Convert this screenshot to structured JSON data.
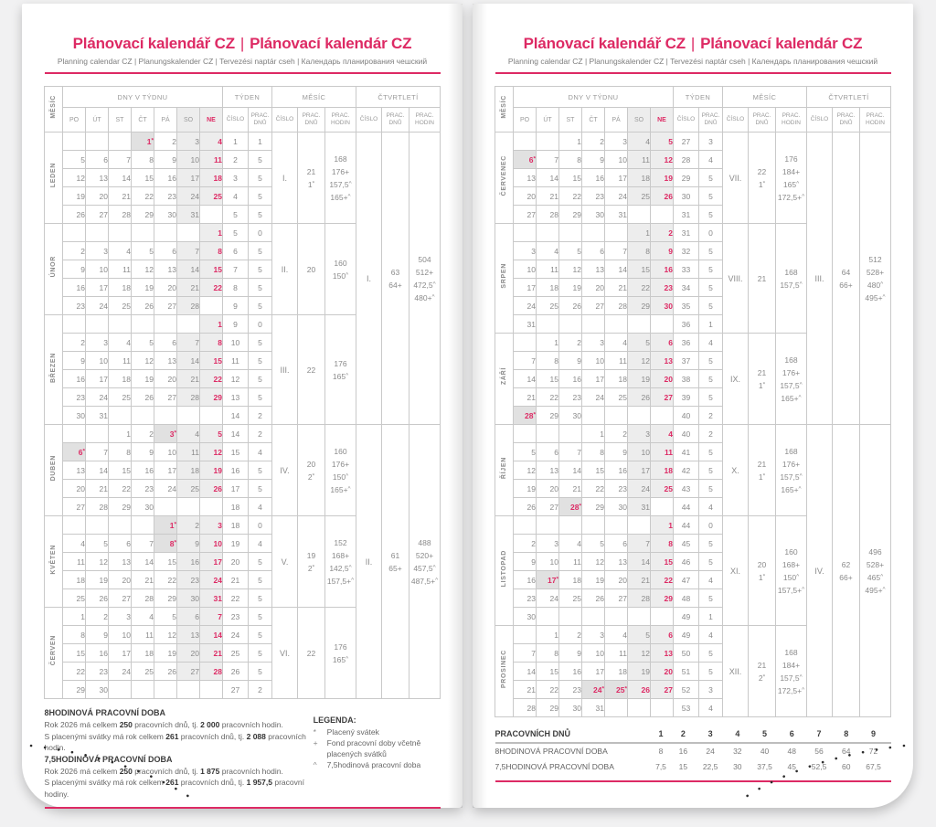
{
  "colors": {
    "accent": "#dd2a64",
    "weekend_bg": "#ededed",
    "holiday_bg": "#e1e1e1"
  },
  "header": {
    "title_cz": "Plánovací kalendář CZ",
    "title_sep": "|",
    "title_sk": "Plánovací kalendár CZ",
    "subtitle": "Planning calendar CZ | Planungskalender CZ | Tervezési naptár cseh | Календарь планирования чешский"
  },
  "table_header": {
    "mesic": "MĚSÍC",
    "dny_v_tydnu": "DNY V TÝDNU",
    "tyden": "TÝDEN",
    "mesic_group": "MĚSÍC",
    "ctvrtleti": "ČTVRTLETÍ",
    "days": [
      "PO",
      "ÚT",
      "ST",
      "ČT",
      "PÁ",
      "SO",
      "NE"
    ],
    "cislo": "ČÍSLO",
    "prac_dnu": [
      "PRAC.",
      "DNŮ"
    ],
    "prac_hodin": [
      "PRAC.",
      "HODIN"
    ]
  },
  "months": [
    {
      "name": "LEDEN",
      "weeks": [
        {
          "days": [
            "",
            "",
            "",
            "1*",
            "2",
            "3",
            "4"
          ],
          "wk": "1",
          "wd": "1"
        },
        {
          "days": [
            "5",
            "6",
            "7",
            "8",
            "9",
            "10",
            "11"
          ],
          "wk": "2",
          "wd": "5"
        },
        {
          "days": [
            "12",
            "13",
            "14",
            "15",
            "16",
            "17",
            "18"
          ],
          "wk": "3",
          "wd": "5"
        },
        {
          "days": [
            "19",
            "20",
            "21",
            "22",
            "23",
            "24",
            "25"
          ],
          "wk": "4",
          "wd": "5"
        },
        {
          "days": [
            "26",
            "27",
            "28",
            "29",
            "30",
            "31",
            ""
          ],
          "wk": "5",
          "wd": "5"
        }
      ],
      "sum": {
        "num": "I.",
        "dnu": [
          "21",
          "1*"
        ],
        "hod": [
          "168",
          "176+",
          "157,5^",
          "165+^"
        ]
      }
    },
    {
      "name": "ÚNOR",
      "weeks": [
        {
          "days": [
            "",
            "",
            "",
            "",
            "",
            "",
            "1"
          ],
          "wk": "5",
          "wd": "0"
        },
        {
          "days": [
            "2",
            "3",
            "4",
            "5",
            "6",
            "7",
            "8"
          ],
          "wk": "6",
          "wd": "5"
        },
        {
          "days": [
            "9",
            "10",
            "11",
            "12",
            "13",
            "14",
            "15"
          ],
          "wk": "7",
          "wd": "5"
        },
        {
          "days": [
            "16",
            "17",
            "18",
            "19",
            "20",
            "21",
            "22"
          ],
          "wk": "8",
          "wd": "5"
        },
        {
          "days": [
            "23",
            "24",
            "25",
            "26",
            "27",
            "28",
            ""
          ],
          "wk": "9",
          "wd": "5"
        }
      ],
      "sum": {
        "num": "II.",
        "dnu": [
          "20"
        ],
        "hod": [
          "160",
          "150^"
        ]
      }
    },
    {
      "name": "BŘEZEN",
      "weeks": [
        {
          "days": [
            "",
            "",
            "",
            "",
            "",
            "",
            "1"
          ],
          "wk": "9",
          "wd": "0"
        },
        {
          "days": [
            "2",
            "3",
            "4",
            "5",
            "6",
            "7",
            "8"
          ],
          "wk": "10",
          "wd": "5"
        },
        {
          "days": [
            "9",
            "10",
            "11",
            "12",
            "13",
            "14",
            "15"
          ],
          "wk": "11",
          "wd": "5"
        },
        {
          "days": [
            "16",
            "17",
            "18",
            "19",
            "20",
            "21",
            "22"
          ],
          "wk": "12",
          "wd": "5"
        },
        {
          "days": [
            "23",
            "24",
            "25",
            "26",
            "27",
            "28",
            "29"
          ],
          "wk": "13",
          "wd": "5"
        },
        {
          "days": [
            "30",
            "31",
            "",
            "",
            "",
            "",
            ""
          ],
          "wk": "14",
          "wd": "2"
        }
      ],
      "sum": {
        "num": "III.",
        "dnu": [
          "22"
        ],
        "hod": [
          "176",
          "165^"
        ]
      }
    },
    {
      "name": "DUBEN",
      "weeks": [
        {
          "days": [
            "",
            "",
            "1",
            "2",
            "3*",
            "4",
            "5"
          ],
          "wk": "14",
          "wd": "2"
        },
        {
          "days": [
            "6*",
            "7",
            "8",
            "9",
            "10",
            "11",
            "12"
          ],
          "wk": "15",
          "wd": "4"
        },
        {
          "days": [
            "13",
            "14",
            "15",
            "16",
            "17",
            "18",
            "19"
          ],
          "wk": "16",
          "wd": "5"
        },
        {
          "days": [
            "20",
            "21",
            "22",
            "23",
            "24",
            "25",
            "26"
          ],
          "wk": "17",
          "wd": "5"
        },
        {
          "days": [
            "27",
            "28",
            "29",
            "30",
            "",
            "",
            ""
          ],
          "wk": "18",
          "wd": "4"
        }
      ],
      "sum": {
        "num": "IV.",
        "dnu": [
          "20",
          "2*"
        ],
        "hod": [
          "160",
          "176+",
          "150^",
          "165+^"
        ]
      }
    },
    {
      "name": "KVĚTEN",
      "weeks": [
        {
          "days": [
            "",
            "",
            "",
            "",
            "1*",
            "2",
            "3"
          ],
          "wk": "18",
          "wd": "0"
        },
        {
          "days": [
            "4",
            "5",
            "6",
            "7",
            "8*",
            "9",
            "10"
          ],
          "wk": "19",
          "wd": "4"
        },
        {
          "days": [
            "11",
            "12",
            "13",
            "14",
            "15",
            "16",
            "17"
          ],
          "wk": "20",
          "wd": "5"
        },
        {
          "days": [
            "18",
            "19",
            "20",
            "21",
            "22",
            "23",
            "24"
          ],
          "wk": "21",
          "wd": "5"
        },
        {
          "days": [
            "25",
            "26",
            "27",
            "28",
            "29",
            "30",
            "31"
          ],
          "wk": "22",
          "wd": "5"
        }
      ],
      "sum": {
        "num": "V.",
        "dnu": [
          "19",
          "2*"
        ],
        "hod": [
          "152",
          "168+",
          "142,5^",
          "157,5+^"
        ]
      }
    },
    {
      "name": "ČERVEN",
      "weeks": [
        {
          "days": [
            "1",
            "2",
            "3",
            "4",
            "5",
            "6",
            "7"
          ],
          "wk": "23",
          "wd": "5"
        },
        {
          "days": [
            "8",
            "9",
            "10",
            "11",
            "12",
            "13",
            "14"
          ],
          "wk": "24",
          "wd": "5"
        },
        {
          "days": [
            "15",
            "16",
            "17",
            "18",
            "19",
            "20",
            "21"
          ],
          "wk": "25",
          "wd": "5"
        },
        {
          "days": [
            "22",
            "23",
            "24",
            "25",
            "26",
            "27",
            "28"
          ],
          "wk": "26",
          "wd": "5"
        },
        {
          "days": [
            "29",
            "30",
            "",
            "",
            "",
            "",
            ""
          ],
          "wk": "27",
          "wd": "2"
        }
      ],
      "sum": {
        "num": "VI.",
        "dnu": [
          "22"
        ],
        "hod": [
          "176",
          "165^"
        ]
      }
    },
    {
      "name": "ČERVENEC",
      "weeks": [
        {
          "days": [
            "",
            "",
            "1",
            "2",
            "3",
            "4",
            {
              "t": "5"
            }
          ],
          "wk": "27",
          "wd": "3"
        },
        {
          "days": [
            "6*",
            "7",
            "8",
            "9",
            "10",
            "11",
            "12"
          ],
          "wk": "28",
          "wd": "4"
        },
        {
          "days": [
            "13",
            "14",
            "15",
            "16",
            "17",
            "18",
            "19"
          ],
          "wk": "29",
          "wd": "5"
        },
        {
          "days": [
            "20",
            "21",
            "22",
            "23",
            "24",
            "25",
            "26"
          ],
          "wk": "30",
          "wd": "5"
        },
        {
          "days": [
            "27",
            "28",
            "29",
            "30",
            "31",
            "",
            ""
          ],
          "wk": "31",
          "wd": "5"
        }
      ],
      "sum": {
        "num": "VII.",
        "dnu": [
          "22",
          "1*"
        ],
        "hod": [
          "176",
          "184+",
          "165^",
          "172,5+^"
        ]
      }
    },
    {
      "name": "SRPEN",
      "weeks": [
        {
          "days": [
            "",
            "",
            "",
            "",
            "",
            "1",
            "2"
          ],
          "wk": "31",
          "wd": "0"
        },
        {
          "days": [
            "3",
            "4",
            "5",
            "6",
            "7",
            "8",
            "9"
          ],
          "wk": "32",
          "wd": "5"
        },
        {
          "days": [
            "10",
            "11",
            "12",
            "13",
            "14",
            "15",
            "16"
          ],
          "wk": "33",
          "wd": "5"
        },
        {
          "days": [
            "17",
            "18",
            "19",
            "20",
            "21",
            "22",
            "23"
          ],
          "wk": "34",
          "wd": "5"
        },
        {
          "days": [
            "24",
            "25",
            "26",
            "27",
            "28",
            "29",
            "30"
          ],
          "wk": "35",
          "wd": "5"
        },
        {
          "days": [
            "31",
            "",
            "",
            "",
            "",
            "",
            ""
          ],
          "wk": "36",
          "wd": "1"
        }
      ],
      "sum": {
        "num": "VIII.",
        "dnu": [
          "21"
        ],
        "hod": [
          "168",
          "157,5^"
        ]
      }
    },
    {
      "name": "ZÁŘÍ",
      "weeks": [
        {
          "days": [
            "",
            "1",
            "2",
            "3",
            "4",
            "5",
            "6"
          ],
          "wk": "36",
          "wd": "4"
        },
        {
          "days": [
            "7",
            "8",
            "9",
            "10",
            "11",
            "12",
            "13"
          ],
          "wk": "37",
          "wd": "5"
        },
        {
          "days": [
            "14",
            "15",
            "16",
            "17",
            "18",
            "19",
            "20"
          ],
          "wk": "38",
          "wd": "5"
        },
        {
          "days": [
            "21",
            "22",
            "23",
            "24",
            "25",
            "26",
            "27"
          ],
          "wk": "39",
          "wd": "5"
        },
        {
          "days": [
            "28*",
            "29",
            "30",
            "",
            "",
            "",
            ""
          ],
          "wk": "40",
          "wd": "2"
        }
      ],
      "sum": {
        "num": "IX.",
        "dnu": [
          "21",
          "1*"
        ],
        "hod": [
          "168",
          "176+",
          "157,5^",
          "165+^"
        ]
      }
    },
    {
      "name": "ŘÍJEN",
      "weeks": [
        {
          "days": [
            "",
            "",
            "",
            "1",
            "2",
            "3",
            "4"
          ],
          "wk": "40",
          "wd": "2"
        },
        {
          "days": [
            "5",
            "6",
            "7",
            "8",
            "9",
            "10",
            "11"
          ],
          "wk": "41",
          "wd": "5"
        },
        {
          "days": [
            "12",
            "13",
            "14",
            "15",
            "16",
            "17",
            "18"
          ],
          "wk": "42",
          "wd": "5"
        },
        {
          "days": [
            "19",
            "20",
            "21",
            "22",
            "23",
            "24",
            "25"
          ],
          "wk": "43",
          "wd": "5"
        },
        {
          "days": [
            "26",
            "27",
            "28*",
            "29",
            "30",
            "31",
            ""
          ],
          "wk": "44",
          "wd": "4"
        }
      ],
      "sum": {
        "num": "X.",
        "dnu": [
          "21",
          "1*"
        ],
        "hod": [
          "168",
          "176+",
          "157,5^",
          "165+^"
        ]
      }
    },
    {
      "name": "LISTOPAD",
      "weeks": [
        {
          "days": [
            "",
            "",
            "",
            "",
            "",
            "",
            "1"
          ],
          "wk": "44",
          "wd": "0"
        },
        {
          "days": [
            "2",
            "3",
            "4",
            "5",
            "6",
            "7",
            "8"
          ],
          "wk": "45",
          "wd": "5"
        },
        {
          "days": [
            "9",
            "10",
            "11",
            "12",
            "13",
            "14",
            "15"
          ],
          "wk": "46",
          "wd": "5"
        },
        {
          "days": [
            "16",
            "17*",
            "18",
            "19",
            "20",
            "21",
            "22"
          ],
          "wk": "47",
          "wd": "4"
        },
        {
          "days": [
            "23",
            "24",
            "25",
            "26",
            "27",
            "28",
            "29"
          ],
          "wk": "48",
          "wd": "5"
        },
        {
          "days": [
            "30",
            "",
            "",
            "",
            "",
            "",
            ""
          ],
          "wk": "49",
          "wd": "1"
        }
      ],
      "sum": {
        "num": "XI.",
        "dnu": [
          "20",
          "1*"
        ],
        "hod": [
          "160",
          "168+",
          "150^",
          "157,5+^"
        ]
      }
    },
    {
      "name": "PROSINEC",
      "weeks": [
        {
          "days": [
            "",
            "1",
            "2",
            "3",
            "4",
            "5",
            "6"
          ],
          "wk": "49",
          "wd": "4"
        },
        {
          "days": [
            "7",
            "8",
            "9",
            "10",
            "11",
            "12",
            "13"
          ],
          "wk": "50",
          "wd": "5"
        },
        {
          "days": [
            "14",
            "15",
            "16",
            "17",
            "18",
            "19",
            "20"
          ],
          "wk": "51",
          "wd": "5"
        },
        {
          "days": [
            "21",
            "22",
            "23",
            "24*",
            "25*",
            {
              "t": "26"
            },
            "27"
          ],
          "wk": "52",
          "wd": "3"
        },
        {
          "days": [
            "28",
            "29",
            "30",
            "31",
            "",
            "",
            ""
          ],
          "wk": "53",
          "wd": "4"
        }
      ],
      "sum": {
        "num": "XII.",
        "dnu": [
          "21",
          "2*"
        ],
        "hod": [
          "168",
          "184+",
          "157,5^",
          "172,5+^"
        ]
      }
    }
  ],
  "quarters": [
    {
      "num": "I.",
      "dnu": [
        "63",
        "64+"
      ],
      "hod": [
        "504",
        "512+",
        "472,5^",
        "480+^"
      ]
    },
    {
      "num": "II.",
      "dnu": [
        "61",
        "65+"
      ],
      "hod": [
        "488",
        "520+",
        "457,5^",
        "487,5+^"
      ]
    },
    {
      "num": "III.",
      "dnu": [
        "64",
        "66+"
      ],
      "hod": [
        "512",
        "528+",
        "480^",
        "495+^"
      ]
    },
    {
      "num": "IV.",
      "dnu": [
        "62",
        "66+"
      ],
      "hod": [
        "496",
        "528+",
        "465^",
        "495+^"
      ]
    }
  ],
  "footer_left": {
    "h8": "8HODINOVÁ PRACOVNÍ DOBA",
    "lines8": [
      "Rok 2026 má celkem **250** pracovních dnů, tj. **2 000** pracovních hodin.",
      "S placenými svátky má rok celkem **261** pracovních dnů, tj. **2 088** pracovních hodin."
    ],
    "h75": "7,5HODINOVÁ PRACOVNÍ DOBA",
    "lines75": [
      "Rok 2026 má celkem **250** pracovních dnů, tj. **1 875** pracovních hodin.",
      "S placenými svátky má rok celkem **261** pracovních dnů, tj. **1 957,5** pracovní hodiny."
    ]
  },
  "legend": {
    "title": "LEGENDA:",
    "items": [
      {
        "sym": "*",
        "text": "Placený svátek"
      },
      {
        "sym": "+",
        "text": "Fond pracovní doby včetně placených svátků"
      },
      {
        "sym": "^",
        "text": "7,5hodinová pracovní doba"
      }
    ]
  },
  "footer_right": {
    "title": "PRACOVNÍCH DNŮ",
    "cols": [
      "1",
      "2",
      "3",
      "4",
      "5",
      "6",
      "7",
      "8",
      "9"
    ],
    "rows": [
      {
        "label": "8HODINOVÁ PRACOVNÍ DOBA",
        "values": [
          "8",
          "16",
          "24",
          "32",
          "40",
          "48",
          "56",
          "64",
          "72"
        ]
      },
      {
        "label": "7,5HODINOVÁ PRACOVNÍ DOBA",
        "values": [
          "7,5",
          "15",
          "22,5",
          "30",
          "37,5",
          "45",
          "52,5",
          "60",
          "67,5"
        ]
      }
    ]
  }
}
